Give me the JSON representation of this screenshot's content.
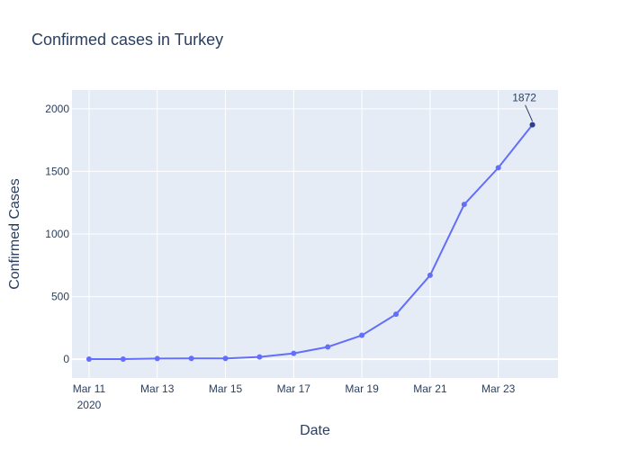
{
  "chart_data": {
    "type": "line",
    "title": "Confirmed cases in Turkey",
    "xlabel": "Date",
    "ylabel": "Confirmed Cases",
    "x": [
      "2020-03-11",
      "2020-03-12",
      "2020-03-13",
      "2020-03-14",
      "2020-03-15",
      "2020-03-16",
      "2020-03-17",
      "2020-03-18",
      "2020-03-19",
      "2020-03-20",
      "2020-03-21",
      "2020-03-22",
      "2020-03-23",
      "2020-03-24"
    ],
    "series": [
      {
        "values": [
          1,
          1,
          5,
          6,
          6,
          18,
          47,
          98,
          191,
          359,
          670,
          1236,
          1529,
          1872
        ]
      }
    ],
    "xlim": [
      "2020-03-10 12:00",
      "2020-03-24 18:00"
    ],
    "ylim": [
      -150,
      2150
    ],
    "y_ticks": [
      0,
      500,
      1000,
      1500,
      2000
    ],
    "x_ticks": [
      {
        "date": "2020-03-11",
        "label": "Mar 11",
        "sublabel": "2020"
      },
      {
        "date": "2020-03-13",
        "label": "Mar 13"
      },
      {
        "date": "2020-03-15",
        "label": "Mar 15"
      },
      {
        "date": "2020-03-17",
        "label": "Mar 17"
      },
      {
        "date": "2020-03-19",
        "label": "Mar 19"
      },
      {
        "date": "2020-03-21",
        "label": "Mar 21"
      },
      {
        "date": "2020-03-23",
        "label": "Mar 23"
      }
    ],
    "annotation": {
      "date": "2020-03-24",
      "value": 1872,
      "text": "1872"
    },
    "grid": true,
    "colors": {
      "line": "#636efa",
      "plot_bg": "#e5ecf6",
      "grid": "#ffffff",
      "text": "#2a3f5f",
      "annotation_marker": "#2a3f8f"
    }
  }
}
